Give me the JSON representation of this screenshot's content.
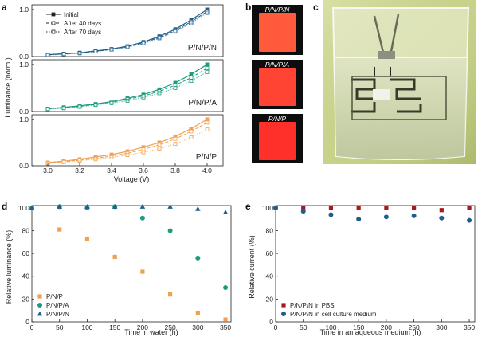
{
  "figure": {
    "panel_labels": [
      "a",
      "b",
      "c",
      "d",
      "e"
    ]
  },
  "colors": {
    "ppn": "#1f5f8b",
    "ppa": "#1d9b7f",
    "pp": "#f0a050",
    "axis": "#222222",
    "pbs": "#a01c22",
    "medium": "#1f5f8b",
    "water": "#cdd6b0",
    "glass": "#e9ecd8"
  },
  "chart_data": [
    {
      "id": "a",
      "type": "line",
      "xlabel": "Voltage (V)",
      "ylabel": "Luminance (norm.)",
      "x_ticks": [
        "3.0",
        "3.2",
        "3.4",
        "3.6",
        "3.8",
        "4.0"
      ],
      "xlim": [
        2.9,
        4.1
      ],
      "legend": {
        "position": "top-left",
        "entries": [
          {
            "label": "Initial",
            "style": "solid-filled-square"
          },
          {
            "label": "After 40 days",
            "style": "dashed-open-square"
          },
          {
            "label": "After 70 days",
            "style": "dotted-gray-square"
          }
        ]
      },
      "subplots": [
        {
          "inner_label": "P/N/P/N",
          "color_key": "ppn",
          "y_ticks": [
            "0.0",
            "1.0"
          ],
          "ylim": [
            0,
            1.1
          ],
          "x": [
            3.0,
            3.1,
            3.2,
            3.3,
            3.4,
            3.5,
            3.6,
            3.7,
            3.8,
            3.9,
            4.0
          ],
          "series": [
            {
              "name": "Initial",
              "values": [
                0.04,
                0.06,
                0.08,
                0.12,
                0.16,
                0.22,
                0.31,
                0.43,
                0.58,
                0.78,
                1.0
              ]
            },
            {
              "name": "After 40 days",
              "values": [
                0.04,
                0.06,
                0.08,
                0.11,
                0.15,
                0.21,
                0.29,
                0.41,
                0.55,
                0.74,
                0.96
              ]
            },
            {
              "name": "After 70 days",
              "values": [
                0.03,
                0.05,
                0.07,
                0.11,
                0.15,
                0.2,
                0.28,
                0.39,
                0.53,
                0.71,
                0.93
              ]
            }
          ]
        },
        {
          "inner_label": "P/N/P/A",
          "color_key": "ppa",
          "y_ticks": [
            "0.0",
            "1.0"
          ],
          "ylim": [
            0,
            1.1
          ],
          "x": [
            3.0,
            3.1,
            3.2,
            3.3,
            3.4,
            3.5,
            3.6,
            3.7,
            3.8,
            3.9,
            4.0
          ],
          "series": [
            {
              "name": "Initial",
              "values": [
                0.06,
                0.09,
                0.12,
                0.16,
                0.21,
                0.28,
                0.36,
                0.47,
                0.61,
                0.79,
                1.0
              ]
            },
            {
              "name": "After 40 days",
              "values": [
                0.06,
                0.08,
                0.11,
                0.15,
                0.2,
                0.26,
                0.33,
                0.43,
                0.56,
                0.72,
                0.92
              ]
            },
            {
              "name": "After 70 days",
              "values": [
                0.05,
                0.07,
                0.1,
                0.14,
                0.18,
                0.23,
                0.3,
                0.39,
                0.5,
                0.65,
                0.84
              ]
            }
          ]
        },
        {
          "inner_label": "P/N/P",
          "color_key": "pp",
          "y_ticks": [
            "0.0",
            "1.0"
          ],
          "ylim": [
            0,
            1.1
          ],
          "x": [
            3.0,
            3.1,
            3.2,
            3.3,
            3.4,
            3.5,
            3.6,
            3.7,
            3.8,
            3.9,
            4.0
          ],
          "series": [
            {
              "name": "Initial",
              "values": [
                0.07,
                0.1,
                0.14,
                0.19,
                0.24,
                0.31,
                0.4,
                0.5,
                0.63,
                0.8,
                1.0
              ]
            },
            {
              "name": "After 40 days",
              "values": [
                0.06,
                0.09,
                0.12,
                0.16,
                0.21,
                0.27,
                0.35,
                0.45,
                0.58,
                0.74,
                0.93
              ]
            },
            {
              "name": "After 70 days",
              "values": [
                0.05,
                0.08,
                0.11,
                0.14,
                0.18,
                0.23,
                0.29,
                0.37,
                0.47,
                0.61,
                0.78
              ]
            }
          ]
        }
      ]
    },
    {
      "id": "d",
      "type": "scatter",
      "xlabel": "Time in water (h)",
      "ylabel": "Relative luminance (%)",
      "xlim": [
        0,
        360
      ],
      "ylim": [
        0,
        102
      ],
      "x_ticks": [
        "0",
        "50",
        "100",
        "150",
        "200",
        "250",
        "300",
        "350"
      ],
      "y_ticks": [
        "0",
        "20",
        "40",
        "60",
        "80",
        "100"
      ],
      "legend_position": "lower-left",
      "series": [
        {
          "name": "P/N/P",
          "marker": "square",
          "color_key": "pp",
          "x": [
            0,
            50,
            100,
            150,
            200,
            250,
            300,
            350
          ],
          "values": [
            100,
            81,
            73,
            57,
            44,
            24,
            8,
            2
          ]
        },
        {
          "name": "P/N/P/A",
          "marker": "circle",
          "color_key": "ppa",
          "x": [
            0,
            50,
            100,
            150,
            200,
            250,
            300,
            350
          ],
          "values": [
            100,
            101,
            100,
            101,
            91,
            80,
            56,
            30
          ]
        },
        {
          "name": "P/N/P/N",
          "marker": "triangle",
          "color_key": "ppn",
          "x": [
            0,
            50,
            100,
            150,
            200,
            250,
            300,
            350
          ],
          "values": [
            100,
            101,
            101,
            101,
            101,
            101,
            99,
            96
          ]
        }
      ]
    },
    {
      "id": "e",
      "type": "scatter",
      "xlabel": "Time in an aqueous medium (h)",
      "ylabel": "Relative current (%)",
      "xlim": [
        0,
        360
      ],
      "ylim": [
        0,
        102
      ],
      "x_ticks": [
        "0",
        "50",
        "100",
        "150",
        "200",
        "250",
        "300",
        "350"
      ],
      "y_ticks": [
        "0",
        "20",
        "40",
        "60",
        "80",
        "100"
      ],
      "legend_position": "lower-left",
      "series": [
        {
          "name": "P/N/P/N in PBS",
          "marker": "square",
          "color_key": "pbs",
          "x": [
            0,
            50,
            100,
            150,
            200,
            250,
            300,
            350
          ],
          "values": [
            100,
            100,
            100,
            100,
            100,
            100,
            98,
            100
          ]
        },
        {
          "name": "P/N/P/N in cell culture medium",
          "marker": "circle",
          "color_key": "medium",
          "x": [
            0,
            50,
            100,
            150,
            200,
            250,
            300,
            350
          ],
          "values": [
            100,
            97,
            94,
            90,
            92,
            93,
            91,
            89
          ]
        }
      ]
    }
  ],
  "panel_b": {
    "devices": [
      {
        "label": "P/N/P/N",
        "glow": "#ff5a3c"
      },
      {
        "label": "P/N/P/A",
        "glow": "#ff4433"
      },
      {
        "label": "P/N/P",
        "glow": "#ff2f2a"
      }
    ]
  }
}
